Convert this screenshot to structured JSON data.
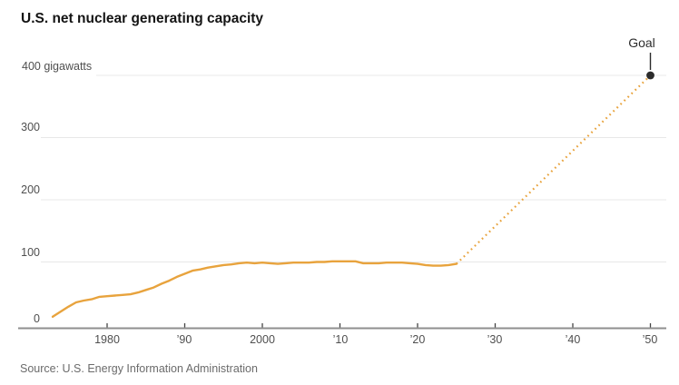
{
  "title": "U.S. net nuclear generating capacity",
  "source": "Source: U.S. Energy Information Administration",
  "colors": {
    "line_orange": "#E8A33D",
    "goal_marker": "#2B2B2B",
    "gridline": "#E8E8E8",
    "axis": "#8F8F8F",
    "tick": "#444444",
    "title_text": "#141414",
    "label_text": "#4F4F4F",
    "source_text": "#6B6B6B"
  },
  "chart_data": {
    "type": "line",
    "title": "U.S. net nuclear generating capacity",
    "xlabel": "",
    "ylabel": "gigawatts",
    "ylim": [
      0,
      400
    ],
    "xlim": [
      1972.5,
      2052
    ],
    "grid": "horizontal",
    "legend_position": "none",
    "yticks": [
      0,
      100,
      200,
      300,
      400
    ],
    "ytick_labels": [
      "0",
      "100",
      "200",
      "300",
      "400 gigawatts"
    ],
    "xticks": [
      1980,
      1990,
      2000,
      2010,
      2020,
      2030,
      2040,
      2050
    ],
    "xtick_labels": [
      "1980",
      "’90",
      "2000",
      "’10",
      "’20",
      "’30",
      "’40",
      "’50"
    ],
    "annotation": {
      "label": "Goal",
      "year": 2050,
      "value": 400
    },
    "series": [
      {
        "name": "historical-capacity",
        "style": "solid",
        "color": "#E8A33D",
        "years": [
          1973,
          1974,
          1975,
          1976,
          1977,
          1978,
          1979,
          1980,
          1981,
          1982,
          1983,
          1984,
          1985,
          1986,
          1987,
          1988,
          1989,
          1990,
          1991,
          1992,
          1993,
          1994,
          1995,
          1996,
          1997,
          1998,
          1999,
          2000,
          2001,
          2002,
          2003,
          2004,
          2005,
          2006,
          2007,
          2008,
          2009,
          2010,
          2011,
          2012,
          2013,
          2014,
          2015,
          2016,
          2017,
          2018,
          2019,
          2020,
          2021,
          2022,
          2023,
          2024,
          2025
        ],
        "values": [
          12,
          20,
          28,
          35,
          38,
          40,
          44,
          45,
          46,
          47,
          48,
          51,
          55,
          59,
          65,
          70,
          76,
          81,
          86,
          88,
          91,
          93,
          95,
          96,
          98,
          99,
          98,
          99,
          98,
          97,
          98,
          99,
          99,
          99,
          100,
          100,
          101,
          101,
          101,
          101,
          98,
          98,
          98,
          99,
          99,
          99,
          98,
          97,
          95,
          94,
          94,
          95,
          97
        ]
      },
      {
        "name": "goal-projection",
        "style": "dotted",
        "color": "#E8A33D",
        "years": [
          2025,
          2050
        ],
        "values": [
          97,
          400
        ]
      }
    ]
  }
}
